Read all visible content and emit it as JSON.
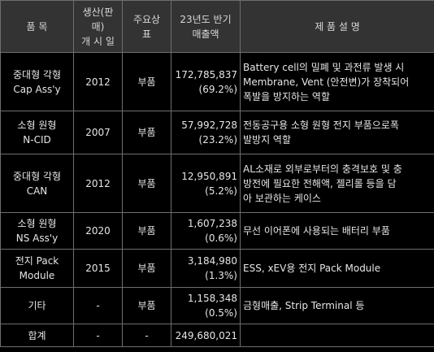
{
  "headers": {
    "item": "품 목",
    "launch_l1": "생산(판",
    "launch_l2": "매)",
    "launch_l3": "개 시 일",
    "customer_l1": "주요상",
    "customer_l2": "표",
    "sales_l1": "23년도 반기",
    "sales_l2": "매출액",
    "desc": "제 품 설 명"
  },
  "rows": [
    {
      "item": [
        "중대형 각형",
        "Cap Ass'y"
      ],
      "year": "2012",
      "type": "부품",
      "amount": "172,785,837",
      "pct": "(69.2%)",
      "desc": [
        "Battery cell의 밀폐 및 과전류 발생 시",
        "Membrane, Vent (안전변)가 장착되어",
        "폭발을 방지하는 역할"
      ]
    },
    {
      "item": [
        "소형 원형",
        "N-CID"
      ],
      "year": "2007",
      "type": "부품",
      "amount": "57,992,728",
      "pct": "(23.2%)",
      "desc": [
        "전동공구용 소형 원형 전지 부품으로폭",
        "발방지 역할"
      ]
    },
    {
      "item": [
        "중대형 각형",
        "CAN"
      ],
      "year": "2012",
      "type": "부품",
      "amount": "12,950,891",
      "pct": "(5.2%)",
      "desc": [
        "AL소재로 외부로부터의 충격보호 및 충",
        "방전에 필요한 전해액, 젤리롤 등을 담",
        "아 보관하는 케이스"
      ]
    },
    {
      "item": [
        "소형 원형",
        "NS Ass'y"
      ],
      "year": "2020",
      "type": "부품",
      "amount": "1,607,238",
      "pct": "(0.6%)",
      "desc": [
        "무선 이어폰에 사용되는 배터리 부품"
      ]
    },
    {
      "item": [
        "전지 Pack",
        "Module"
      ],
      "year": "2015",
      "type": "부품",
      "amount": "3,184,980",
      "pct": "(1.3%)",
      "desc": [
        "ESS, xEV용 전지 Pack Module"
      ]
    },
    {
      "item": [
        "기타"
      ],
      "year": "-",
      "type": "부품",
      "amount": "1,158,348",
      "pct": "(0.5%)",
      "desc": [
        "금형매출, Strip Terminal 등"
      ]
    }
  ],
  "total": {
    "label": "합계",
    "year": "-",
    "type": "-",
    "amount": "249,680,021",
    "desc": ""
  }
}
